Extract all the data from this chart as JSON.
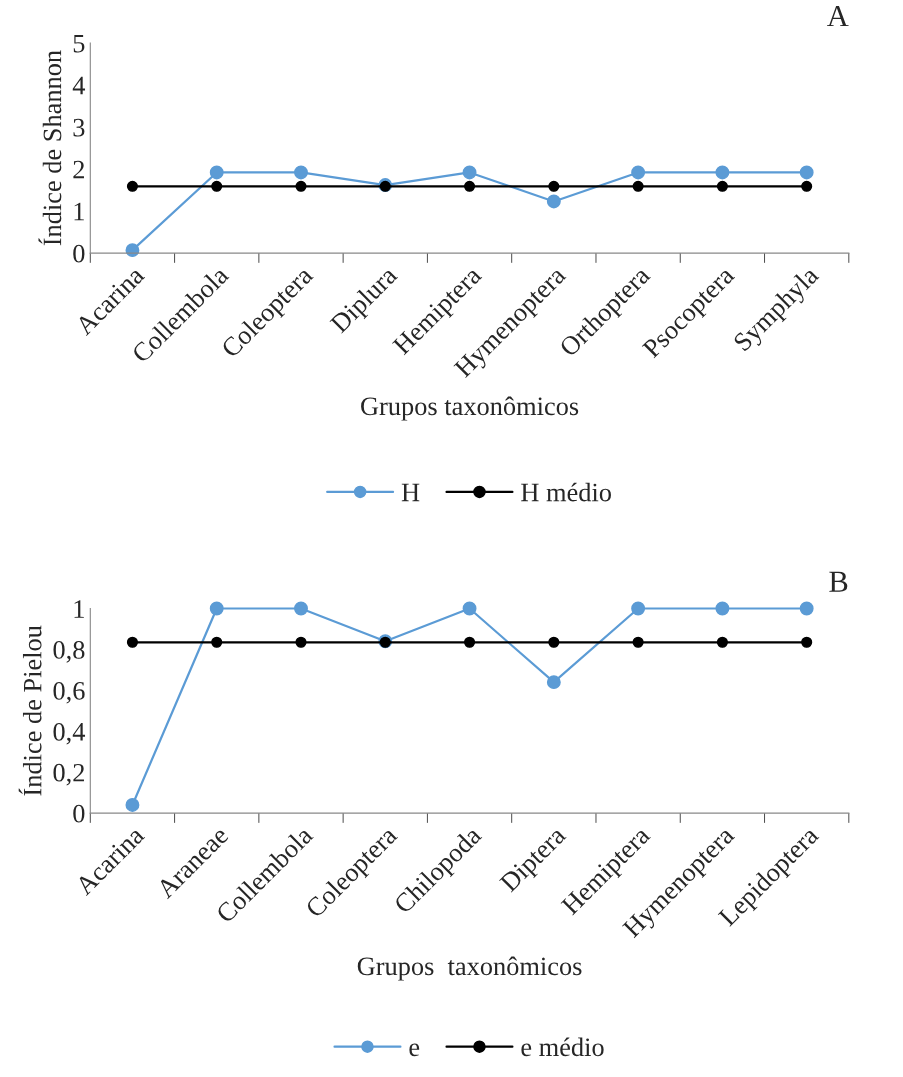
{
  "chart_data": [
    {
      "type": "line",
      "categories": [
        "Acarina",
        "Collembola",
        "Coleoptera",
        "Diplura",
        "Hemiptera",
        "Hymenoptera",
        "Orthoptera",
        "Psocoptera",
        "Symphyla"
      ],
      "xlabel": "Grupos taxonômicos",
      "ylabel": "Índice de Shannon",
      "ylim": [
        0,
        5
      ],
      "yticks": [
        0,
        1,
        2,
        3,
        4,
        5
      ],
      "grid": false,
      "legend": "bottom",
      "marker": "circle",
      "line_style": "solid",
      "annotations": [
        "A"
      ],
      "series": [
        {
          "name": "H",
          "color": "#5b9bd5",
          "values": [
            0.07,
            1.92,
            1.92,
            1.62,
            1.92,
            1.23,
            1.92,
            1.92,
            1.92
          ]
        },
        {
          "name": "H médio",
          "color": "#000000",
          "values": [
            1.59,
            1.59,
            1.59,
            1.59,
            1.59,
            1.59,
            1.59,
            1.59,
            1.59
          ]
        }
      ]
    },
    {
      "type": "line",
      "categories": [
        "Acarina",
        "Araneae",
        "Collembola",
        "Coleoptera",
        "Chilopoda",
        "Diptera",
        "Hemiptera",
        "Hymenoptera",
        "Lepidoptera"
      ],
      "xlabel": "Grupos  taxonômicos",
      "ylabel": "Índice de Pielou",
      "ylim": [
        0,
        1
      ],
      "yticks": [
        0,
        {
          "value": 0.2,
          "label": "0,2"
        },
        {
          "value": 0.4,
          "label": "0,4"
        },
        {
          "value": 0.6,
          "label": "0,6"
        },
        {
          "value": 0.8,
          "label": "0,8"
        },
        1
      ],
      "grid": false,
      "legend": "bottom",
      "marker": "circle",
      "line_style": "solid",
      "annotations": [
        "B"
      ],
      "series": [
        {
          "name": "e",
          "color": "#5b9bd5",
          "values": [
            0.04,
            1,
            1,
            0.84,
            1,
            0.64,
            1,
            1,
            1
          ]
        },
        {
          "name": "e médio",
          "color": "#000000",
          "values": [
            0.835,
            0.835,
            0.835,
            0.835,
            0.835,
            0.835,
            0.835,
            0.835,
            0.835
          ]
        }
      ]
    }
  ]
}
